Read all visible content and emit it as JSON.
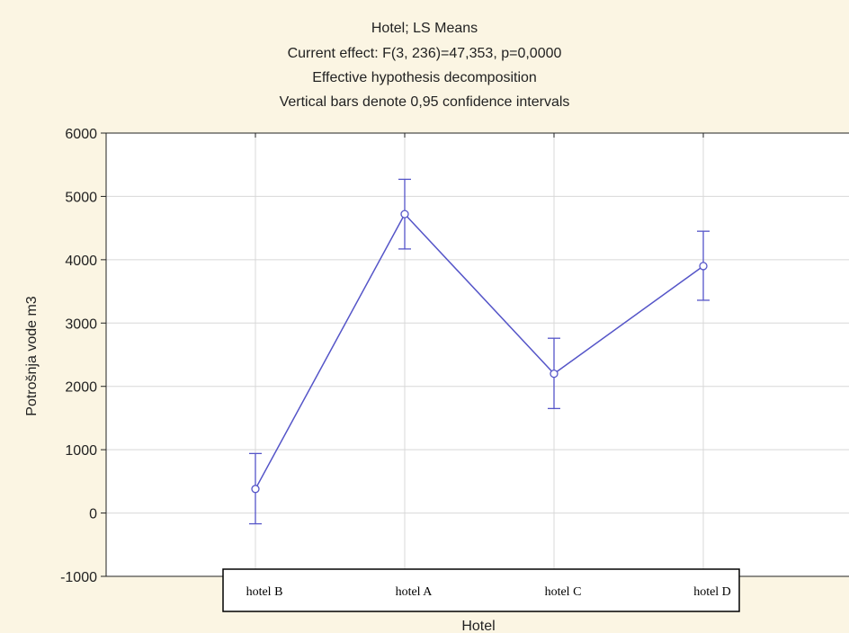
{
  "title_lines": [
    "Hotel; LS Means",
    "Current effect: F(3, 236)=47,353, p=0,0000",
    "Effective hypothesis decomposition",
    "Vertical bars denote 0,95 confidence intervals"
  ],
  "colors": {
    "background": "#fbf5e3",
    "plot_area": "#ffffff",
    "series": "#5555c8",
    "grid": "#d8d8d8",
    "axis": "#222222"
  },
  "chart_data": {
    "type": "line",
    "title": "Hotel; LS Means",
    "subtitle": "Current effect: F(3, 236)=47,353, p=0,0000 / Effective hypothesis decomposition / Vertical bars denote 0,95 confidence intervals",
    "xlabel": "Hotel",
    "ylabel": "Potrošnja vode m3",
    "categories": [
      "hotel B",
      "hotel A",
      "hotel C",
      "hotel D"
    ],
    "series": [
      {
        "values": [
          380,
          4720,
          2200,
          3900
        ],
        "ci_lower": [
          -170,
          4170,
          1650,
          3360
        ],
        "ci_upper": [
          940,
          5270,
          2760,
          4450
        ]
      }
    ],
    "ylim": [
      -1000,
      6000
    ],
    "yticks": [
      -1000,
      0,
      1000,
      2000,
      3000,
      4000,
      5000,
      6000
    ],
    "ytick_labels": [
      "-1000",
      "0",
      "1000",
      "2000",
      "3000",
      "4000",
      "5000",
      "6000"
    ],
    "grid": true,
    "legend": "none"
  }
}
